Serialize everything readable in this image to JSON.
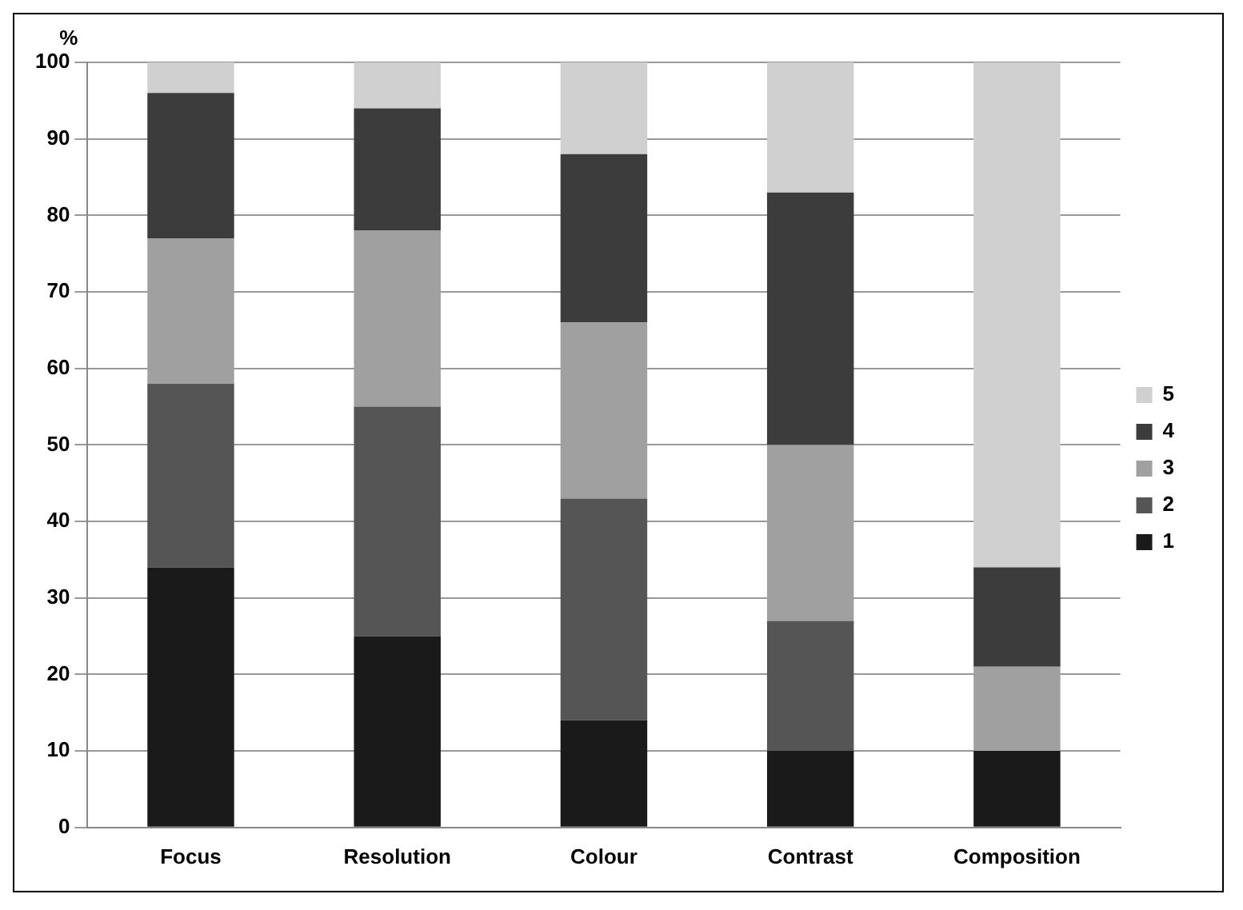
{
  "chart_data": {
    "type": "bar",
    "stacked": true,
    "ylabel": "%",
    "categories": [
      "Focus",
      "Resolution",
      "Colour",
      "Contrast",
      "Composition"
    ],
    "series": [
      {
        "name": "1",
        "color": "#1a1a1a",
        "values": [
          34,
          25,
          14,
          10,
          10
        ]
      },
      {
        "name": "2",
        "color": "#555555",
        "values": [
          24,
          30,
          29,
          17,
          0
        ]
      },
      {
        "name": "3",
        "color": "#a0a0a0",
        "values": [
          19,
          23,
          23,
          23,
          11
        ]
      },
      {
        "name": "4",
        "color": "#3c3c3c",
        "values": [
          19,
          16,
          22,
          33,
          13
        ]
      },
      {
        "name": "5",
        "color": "#d0d0d0",
        "values": [
          4,
          6,
          12,
          17,
          66
        ]
      }
    ],
    "ylim": [
      0,
      100
    ],
    "yticks": [
      0,
      10,
      20,
      30,
      40,
      50,
      60,
      70,
      80,
      90,
      100
    ],
    "grid": "y",
    "legend": "right"
  }
}
